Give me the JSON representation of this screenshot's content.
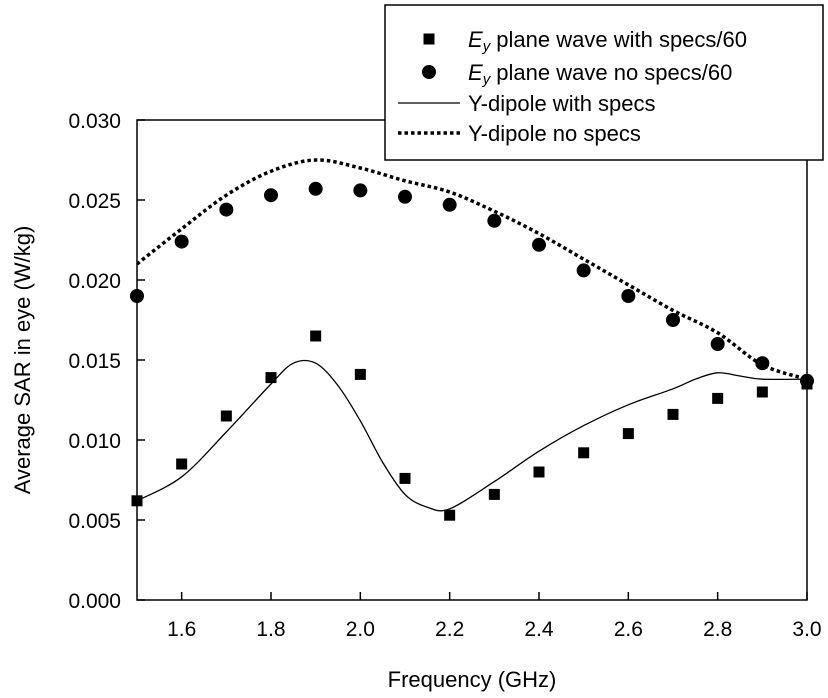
{
  "chart_data": {
    "type": "scatter",
    "xlabel": "Frequency (GHz)",
    "ylabel": "Average SAR in eye (W/kg)",
    "xlim": [
      1.5,
      3.0
    ],
    "ylim": [
      0.0,
      0.03
    ],
    "x_ticks": [
      "1.6",
      "1.8",
      "2.0",
      "2.2",
      "2.4",
      "2.6",
      "2.8",
      "3.0"
    ],
    "y_ticks": [
      "0.000",
      "0.005",
      "0.010",
      "0.015",
      "0.020",
      "0.025",
      "0.030"
    ],
    "grid": false,
    "legend_position": "top-right",
    "series": [
      {
        "name_prefix": "E",
        "name_sub": "y",
        "name_suffix": " plane wave with specs/60",
        "style": "square-markers",
        "x": [
          1.5,
          1.6,
          1.7,
          1.8,
          1.9,
          2.0,
          2.1,
          2.2,
          2.3,
          2.4,
          2.5,
          2.6,
          2.7,
          2.8,
          2.9,
          3.0
        ],
        "y": [
          0.0062,
          0.0085,
          0.0115,
          0.0139,
          0.0165,
          0.0141,
          0.0076,
          0.0053,
          0.0066,
          0.008,
          0.0092,
          0.0104,
          0.0116,
          0.0126,
          0.013,
          0.0135
        ]
      },
      {
        "name_prefix": "E",
        "name_sub": "y",
        "name_suffix": " plane wave no specs/60",
        "style": "circle-markers",
        "x": [
          1.5,
          1.6,
          1.7,
          1.8,
          1.9,
          2.0,
          2.1,
          2.2,
          2.3,
          2.4,
          2.5,
          2.6,
          2.7,
          2.8,
          2.9,
          3.0
        ],
        "y": [
          0.019,
          0.0224,
          0.0244,
          0.0253,
          0.0257,
          0.0256,
          0.0252,
          0.0247,
          0.0237,
          0.0222,
          0.0206,
          0.019,
          0.0175,
          0.016,
          0.0148,
          0.0137
        ]
      },
      {
        "name": "Y-dipole with specs",
        "style": "solid-line",
        "x": [
          1.5,
          1.6,
          1.7,
          1.8,
          1.85,
          1.9,
          1.95,
          2.0,
          2.05,
          2.1,
          2.15,
          2.2,
          2.3,
          2.4,
          2.5,
          2.6,
          2.7,
          2.75,
          2.8,
          2.85,
          2.9,
          3.0
        ],
        "y": [
          0.0062,
          0.0077,
          0.0105,
          0.0135,
          0.0148,
          0.0148,
          0.0134,
          0.0112,
          0.0086,
          0.0066,
          0.0058,
          0.0057,
          0.0074,
          0.0093,
          0.0109,
          0.0122,
          0.0132,
          0.0138,
          0.0142,
          0.014,
          0.0138,
          0.0138
        ]
      },
      {
        "name": "Y-dipole no specs",
        "style": "dotted-line",
        "x": [
          1.5,
          1.6,
          1.7,
          1.8,
          1.9,
          2.0,
          2.1,
          2.2,
          2.3,
          2.4,
          2.5,
          2.6,
          2.7,
          2.8,
          2.9,
          3.0
        ],
        "y": [
          0.021,
          0.0232,
          0.0253,
          0.0268,
          0.0275,
          0.027,
          0.0262,
          0.0255,
          0.0243,
          0.0229,
          0.0213,
          0.0197,
          0.0181,
          0.0167,
          0.0147,
          0.0138
        ]
      }
    ]
  }
}
